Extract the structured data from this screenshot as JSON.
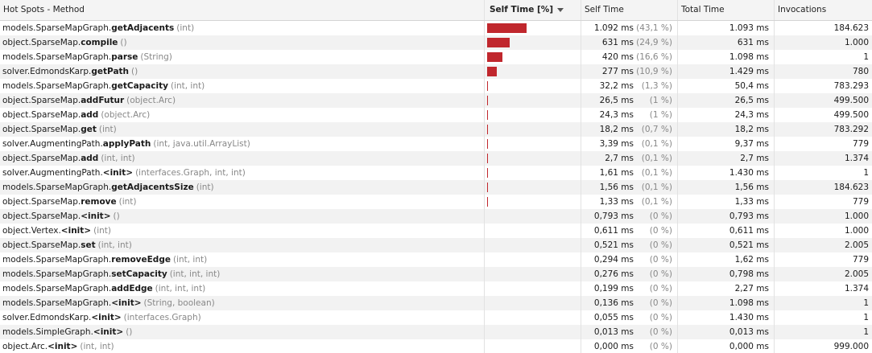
{
  "header": {
    "method": "Hot Spots - Method",
    "self_pct": "Self Time [%]",
    "self_time": "Self Time",
    "total_time": "Total Time",
    "invocations": "Invocations"
  },
  "rows": [
    {
      "prefix": "models.SparseMapGraph.",
      "name": "getAdjacents",
      "params": "(int)",
      "self_fraction": 0.431,
      "self": "1.092 ms",
      "pct": "(43,1 %)",
      "total": "1.093 ms",
      "inv": "184.623"
    },
    {
      "prefix": "object.SparseMap.",
      "name": "compile",
      "params": "()",
      "self_fraction": 0.249,
      "self": "631 ms",
      "pct": "(24,9 %)",
      "total": "631 ms",
      "inv": "1.000"
    },
    {
      "prefix": "models.SparseMapGraph.",
      "name": "parse",
      "params": "(String)",
      "self_fraction": 0.166,
      "self": "420 ms",
      "pct": "(16,6 %)",
      "total": "1.098 ms",
      "inv": "1"
    },
    {
      "prefix": "solver.EdmondsKarp.",
      "name": "getPath",
      "params": "()",
      "self_fraction": 0.109,
      "self": "277 ms",
      "pct": "(10,9 %)",
      "total": "1.429 ms",
      "inv": "780"
    },
    {
      "prefix": "models.SparseMapGraph.",
      "name": "getCapacity",
      "params": "(int, int)",
      "self_fraction": 0.013,
      "self": "32,2 ms",
      "pct": "(1,3 %)",
      "total": "50,4 ms",
      "inv": "783.293"
    },
    {
      "prefix": "object.SparseMap.",
      "name": "addFutur",
      "params": "(object.Arc)",
      "self_fraction": 0.01,
      "self": "26,5 ms",
      "pct": "(1 %)",
      "total": "26,5 ms",
      "inv": "499.500"
    },
    {
      "prefix": "object.SparseMap.",
      "name": "add",
      "params": "(object.Arc)",
      "self_fraction": 0.01,
      "self": "24,3 ms",
      "pct": "(1 %)",
      "total": "24,3 ms",
      "inv": "499.500"
    },
    {
      "prefix": "object.SparseMap.",
      "name": "get",
      "params": "(int)",
      "self_fraction": 0.007,
      "self": "18,2 ms",
      "pct": "(0,7 %)",
      "total": "18,2 ms",
      "inv": "783.292"
    },
    {
      "prefix": "solver.AugmentingPath.",
      "name": "applyPath",
      "params": "(int, java.util.ArrayList)",
      "self_fraction": 0.001,
      "self": "3,39 ms",
      "pct": "(0,1 %)",
      "total": "9,37 ms",
      "inv": "779"
    },
    {
      "prefix": "object.SparseMap.",
      "name": "add",
      "params": "(int, int)",
      "self_fraction": 0.001,
      "self": "2,7 ms",
      "pct": "(0,1 %)",
      "total": "2,7 ms",
      "inv": "1.374"
    },
    {
      "prefix": "solver.AugmentingPath.",
      "name": "<init>",
      "params": "(interfaces.Graph, int, int)",
      "self_fraction": 0.001,
      "self": "1,61 ms",
      "pct": "(0,1 %)",
      "total": "1.430 ms",
      "inv": "1"
    },
    {
      "prefix": "models.SparseMapGraph.",
      "name": "getAdjacentsSize",
      "params": "(int)",
      "self_fraction": 0.001,
      "self": "1,56 ms",
      "pct": "(0,1 %)",
      "total": "1,56 ms",
      "inv": "184.623"
    },
    {
      "prefix": "object.SparseMap.",
      "name": "remove",
      "params": "(int)",
      "self_fraction": 0.001,
      "self": "1,33 ms",
      "pct": "(0,1 %)",
      "total": "1,33 ms",
      "inv": "779"
    },
    {
      "prefix": "object.SparseMap.",
      "name": "<init>",
      "params": "()",
      "self_fraction": 0,
      "self": "0,793 ms",
      "pct": "(0 %)",
      "total": "0,793 ms",
      "inv": "1.000"
    },
    {
      "prefix": "object.Vertex.",
      "name": "<init>",
      "params": "(int)",
      "self_fraction": 0,
      "self": "0,611 ms",
      "pct": "(0 %)",
      "total": "0,611 ms",
      "inv": "1.000"
    },
    {
      "prefix": "object.SparseMap.",
      "name": "set",
      "params": "(int, int)",
      "self_fraction": 0,
      "self": "0,521 ms",
      "pct": "(0 %)",
      "total": "0,521 ms",
      "inv": "2.005"
    },
    {
      "prefix": "models.SparseMapGraph.",
      "name": "removeEdge",
      "params": "(int, int)",
      "self_fraction": 0,
      "self": "0,294 ms",
      "pct": "(0 %)",
      "total": "1,62 ms",
      "inv": "779"
    },
    {
      "prefix": "models.SparseMapGraph.",
      "name": "setCapacity",
      "params": "(int, int, int)",
      "self_fraction": 0,
      "self": "0,276 ms",
      "pct": "(0 %)",
      "total": "0,798 ms",
      "inv": "2.005"
    },
    {
      "prefix": "models.SparseMapGraph.",
      "name": "addEdge",
      "params": "(int, int, int)",
      "self_fraction": 0,
      "self": "0,199 ms",
      "pct": "(0 %)",
      "total": "2,27 ms",
      "inv": "1.374"
    },
    {
      "prefix": "models.SparseMapGraph.",
      "name": "<init>",
      "params": "(String, boolean)",
      "self_fraction": 0,
      "self": "0,136 ms",
      "pct": "(0 %)",
      "total": "1.098 ms",
      "inv": "1"
    },
    {
      "prefix": "solver.EdmondsKarp.",
      "name": "<init>",
      "params": "(interfaces.Graph)",
      "self_fraction": 0,
      "self": "0,055 ms",
      "pct": "(0 %)",
      "total": "1.430 ms",
      "inv": "1"
    },
    {
      "prefix": "models.SimpleGraph.",
      "name": "<init>",
      "params": "()",
      "self_fraction": 0,
      "self": "0,013 ms",
      "pct": "(0 %)",
      "total": "0,013 ms",
      "inv": "1"
    },
    {
      "prefix": "object.Arc.",
      "name": "<init>",
      "params": "(int, int)",
      "self_fraction": 0,
      "self": "0,000 ms",
      "pct": "(0 %)",
      "total": "0,000 ms",
      "inv": "999.000"
    }
  ],
  "colors": {
    "bar": "#c0272d",
    "row_alt": "#f2f2f2",
    "params": "#888888"
  },
  "icons": {
    "sort": "sort-descending-icon"
  }
}
